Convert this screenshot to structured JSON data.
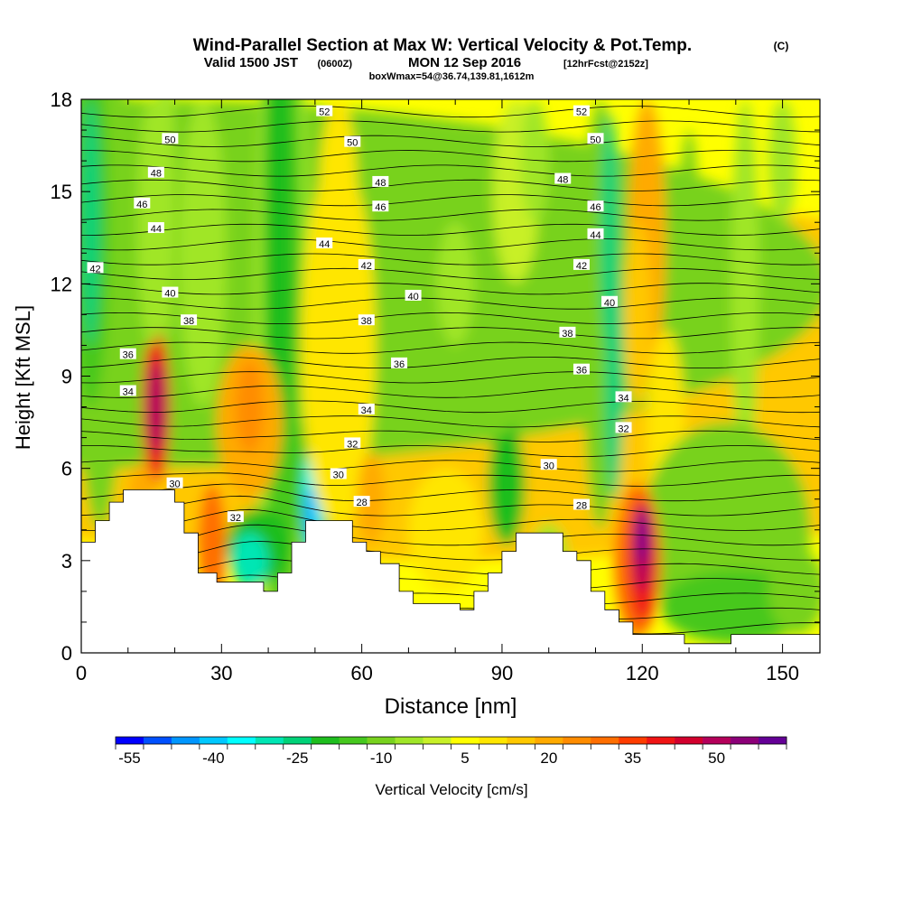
{
  "chart_data": {
    "type": "heatmap",
    "title": {
      "main": "Wind-Parallel Section at Max W: Vertical Velocity & Pot.Temp.",
      "copyright": "(C)",
      "valid_prefix": "Valid 1500 JST",
      "valid_utc": "(0600Z)",
      "valid_date": "MON 12 Sep 2016",
      "forecast": "[12hrFcst@2152z]",
      "subline": "boxWmax=54@36.74,139.81,1612m"
    },
    "xlabel": "Distance [nm]",
    "ylabel": "Height [Kft MSL]",
    "xlim": [
      0,
      158
    ],
    "ylim": [
      0,
      18
    ],
    "x_ticks": [
      "0",
      "30",
      "60",
      "90",
      "120",
      "150"
    ],
    "y_ticks": [
      "0",
      "3",
      "6",
      "9",
      "12",
      "15",
      "18"
    ],
    "colorbar": {
      "label": "Vertical Velocity [cm/s]",
      "tick_labels": [
        "-55",
        "-40",
        "-25",
        "-10",
        "5",
        "20",
        "35",
        "50"
      ],
      "levels": [
        -55,
        -50,
        -45,
        -40,
        -35,
        -30,
        -25,
        -20,
        -15,
        -10,
        -5,
        0,
        5,
        10,
        15,
        20,
        25,
        30,
        35,
        40,
        45,
        50,
        55,
        60
      ],
      "colors": [
        "#0000ff",
        "#0050ff",
        "#0096ff",
        "#00c8ff",
        "#00ffff",
        "#00e6b4",
        "#00d278",
        "#1ebe1e",
        "#46c81e",
        "#78d21e",
        "#a0e628",
        "#c8f028",
        "#ffff00",
        "#ffe600",
        "#ffc800",
        "#ffaa00",
        "#ff8c00",
        "#ff6e00",
        "#ff3c00",
        "#f01414",
        "#d2002d",
        "#b4005a",
        "#8c0078",
        "#640096"
      ]
    },
    "terrain_kft": [
      [
        0,
        3.6
      ],
      [
        3,
        3.6
      ],
      [
        3,
        4.3
      ],
      [
        6,
        4.3
      ],
      [
        6,
        4.9
      ],
      [
        9,
        4.9
      ],
      [
        9,
        5.3
      ],
      [
        20,
        5.3
      ],
      [
        20,
        4.9
      ],
      [
        22,
        4.9
      ],
      [
        22,
        3.9
      ],
      [
        25,
        3.9
      ],
      [
        25,
        2.6
      ],
      [
        29,
        2.6
      ],
      [
        29,
        2.3
      ],
      [
        39,
        2.3
      ],
      [
        39,
        2
      ],
      [
        42,
        2
      ],
      [
        42,
        2.6
      ],
      [
        45,
        2.6
      ],
      [
        45,
        3.6
      ],
      [
        48,
        3.6
      ],
      [
        48,
        4.3
      ],
      [
        58,
        4.3
      ],
      [
        58,
        3.6
      ],
      [
        61,
        3.6
      ],
      [
        61,
        3.3
      ],
      [
        64,
        3.3
      ],
      [
        64,
        2.9
      ],
      [
        68,
        2.9
      ],
      [
        68,
        2
      ],
      [
        71,
        2
      ],
      [
        71,
        1.6
      ],
      [
        81,
        1.6
      ],
      [
        81,
        1.4
      ],
      [
        84,
        1.4
      ],
      [
        84,
        2
      ],
      [
        87,
        2
      ],
      [
        87,
        2.6
      ],
      [
        90,
        2.6
      ],
      [
        90,
        3.3
      ],
      [
        93,
        3.3
      ],
      [
        93,
        3.9
      ],
      [
        103,
        3.9
      ],
      [
        103,
        3.3
      ],
      [
        106,
        3.3
      ],
      [
        106,
        3
      ],
      [
        109,
        3
      ],
      [
        109,
        2
      ],
      [
        112,
        2
      ],
      [
        112,
        1.4
      ],
      [
        115,
        1.4
      ],
      [
        115,
        1
      ],
      [
        118,
        1
      ],
      [
        118,
        0.6
      ],
      [
        129,
        0.6
      ],
      [
        129,
        0.3
      ],
      [
        139,
        0.3
      ],
      [
        139,
        0.6
      ],
      [
        158,
        0.6
      ]
    ],
    "theta_contour_labels": [
      {
        "text": "52",
        "x": 52,
        "y": 17.6
      },
      {
        "text": "52",
        "x": 107,
        "y": 17.6
      },
      {
        "text": "50",
        "x": 19,
        "y": 16.7
      },
      {
        "text": "50",
        "x": 58,
        "y": 16.6
      },
      {
        "text": "50",
        "x": 110,
        "y": 16.7
      },
      {
        "text": "48",
        "x": 16,
        "y": 15.6
      },
      {
        "text": "48",
        "x": 64,
        "y": 15.3
      },
      {
        "text": "48",
        "x": 103,
        "y": 15.4
      },
      {
        "text": "46",
        "x": 13,
        "y": 14.6
      },
      {
        "text": "46",
        "x": 64,
        "y": 14.5
      },
      {
        "text": "46",
        "x": 110,
        "y": 14.5
      },
      {
        "text": "44",
        "x": 16,
        "y": 13.8
      },
      {
        "text": "44",
        "x": 52,
        "y": 13.3
      },
      {
        "text": "44",
        "x": 110,
        "y": 13.6
      },
      {
        "text": "42",
        "x": 3,
        "y": 12.5
      },
      {
        "text": "42",
        "x": 61,
        "y": 12.6
      },
      {
        "text": "42",
        "x": 107,
        "y": 12.6
      },
      {
        "text": "40",
        "x": 19,
        "y": 11.7
      },
      {
        "text": "40",
        "x": 71,
        "y": 11.6
      },
      {
        "text": "40",
        "x": 113,
        "y": 11.4
      },
      {
        "text": "38",
        "x": 23,
        "y": 10.8
      },
      {
        "text": "38",
        "x": 61,
        "y": 10.8
      },
      {
        "text": "38",
        "x": 104,
        "y": 10.4
      },
      {
        "text": "36",
        "x": 10,
        "y": 9.7
      },
      {
        "text": "36",
        "x": 68,
        "y": 9.4
      },
      {
        "text": "36",
        "x": 107,
        "y": 9.2
      },
      {
        "text": "34",
        "x": 10,
        "y": 8.5
      },
      {
        "text": "34",
        "x": 61,
        "y": 7.9
      },
      {
        "text": "34",
        "x": 116,
        "y": 8.3
      },
      {
        "text": "32",
        "x": 58,
        "y": 6.8
      },
      {
        "text": "32",
        "x": 116,
        "y": 7.3
      },
      {
        "text": "32",
        "x": 33,
        "y": 4.4
      },
      {
        "text": "30",
        "x": 20,
        "y": 5.5
      },
      {
        "text": "30",
        "x": 55,
        "y": 5.8
      },
      {
        "text": "30",
        "x": 100,
        "y": 6.1
      },
      {
        "text": "28",
        "x": 60,
        "y": 4.9
      },
      {
        "text": "28",
        "x": 107,
        "y": 4.8
      }
    ]
  }
}
